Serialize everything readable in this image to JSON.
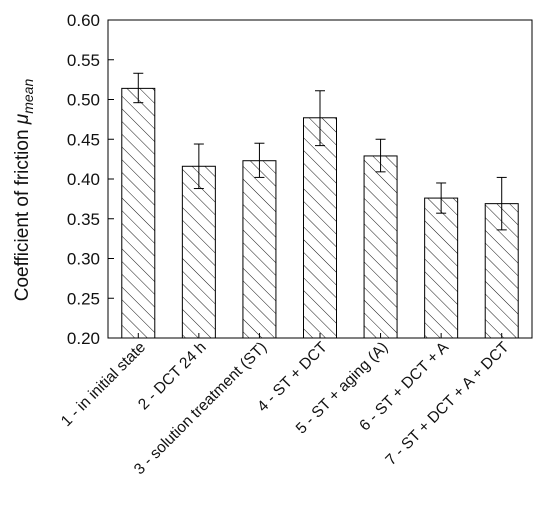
{
  "chart_data": {
    "type": "bar",
    "categories": [
      "1 -  in initial state",
      "2 - DCT 24 h",
      "3 - solution treatment (ST)",
      "4 -  ST + DCT",
      "5 - ST + aging (A)",
      "6 - ST + DCT + A",
      "7 - ST + DCT + A + DCT"
    ],
    "values": [
      0.514,
      0.416,
      0.423,
      0.477,
      0.429,
      0.376,
      0.369
    ],
    "errors": [
      [
        0.496,
        0.533
      ],
      [
        0.388,
        0.444
      ],
      [
        0.402,
        0.445
      ],
      [
        0.442,
        0.511
      ],
      [
        0.409,
        0.45
      ],
      [
        0.357,
        0.395
      ],
      [
        0.336,
        0.402
      ]
    ],
    "title": "",
    "ylabel_main": "Coefficient of friction ",
    "ylabel_symbol": "μ",
    "ylabel_subscript": "mean",
    "xlabel": "",
    "ylim": [
      0.2,
      0.6
    ],
    "yticks": [
      "0.20",
      "0.25",
      "0.30",
      "0.35",
      "0.40",
      "0.45",
      "0.50",
      "0.55",
      "0.60"
    ],
    "grid": false,
    "bar_fill": "hatched",
    "bar_color": "#000000"
  }
}
